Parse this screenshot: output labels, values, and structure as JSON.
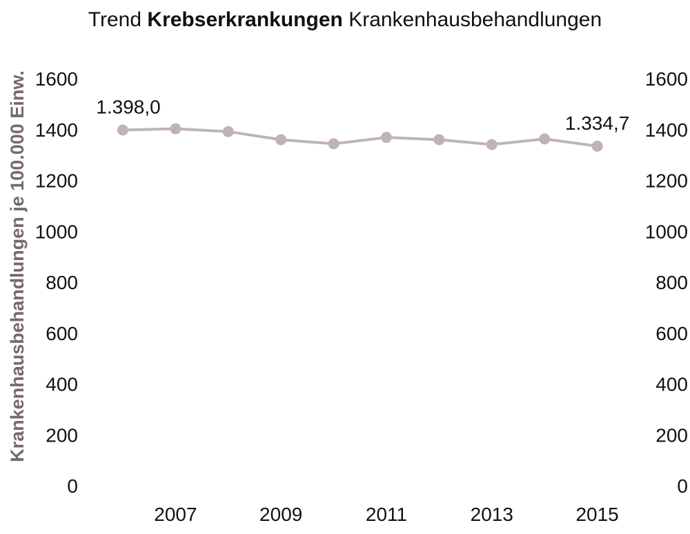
{
  "chart_data": {
    "type": "line",
    "title_parts": {
      "prefix": "Trend",
      "bold": "Krebserkrankungen",
      "suffix": "Krankenhausbehandlungen"
    },
    "xlabel": "",
    "ylabel": "Krankenhausbehandlungen je 100.000 Einw.",
    "x": [
      2006,
      2007,
      2008,
      2009,
      2010,
      2011,
      2012,
      2013,
      2014,
      2015
    ],
    "x_tick_labels": [
      "2007",
      "2009",
      "2011",
      "2013",
      "2015"
    ],
    "series": [
      {
        "values": [
          1398.0,
          1403,
          1392,
          1360,
          1344,
          1369,
          1360,
          1341,
          1363,
          1334.7
        ]
      }
    ],
    "data_labels": [
      {
        "index": 0,
        "text": "1.398,0"
      },
      {
        "index": 9,
        "text": "1.334,7"
      }
    ],
    "ylim": [
      0,
      1600
    ],
    "y_ticks": [
      0,
      200,
      400,
      600,
      800,
      1000,
      1200,
      1400,
      1600
    ],
    "secondary_y_axis": true,
    "grid": false,
    "colors": {
      "line": "#bfb3b8",
      "ylabel": "#76696e",
      "text": "#111111"
    }
  }
}
